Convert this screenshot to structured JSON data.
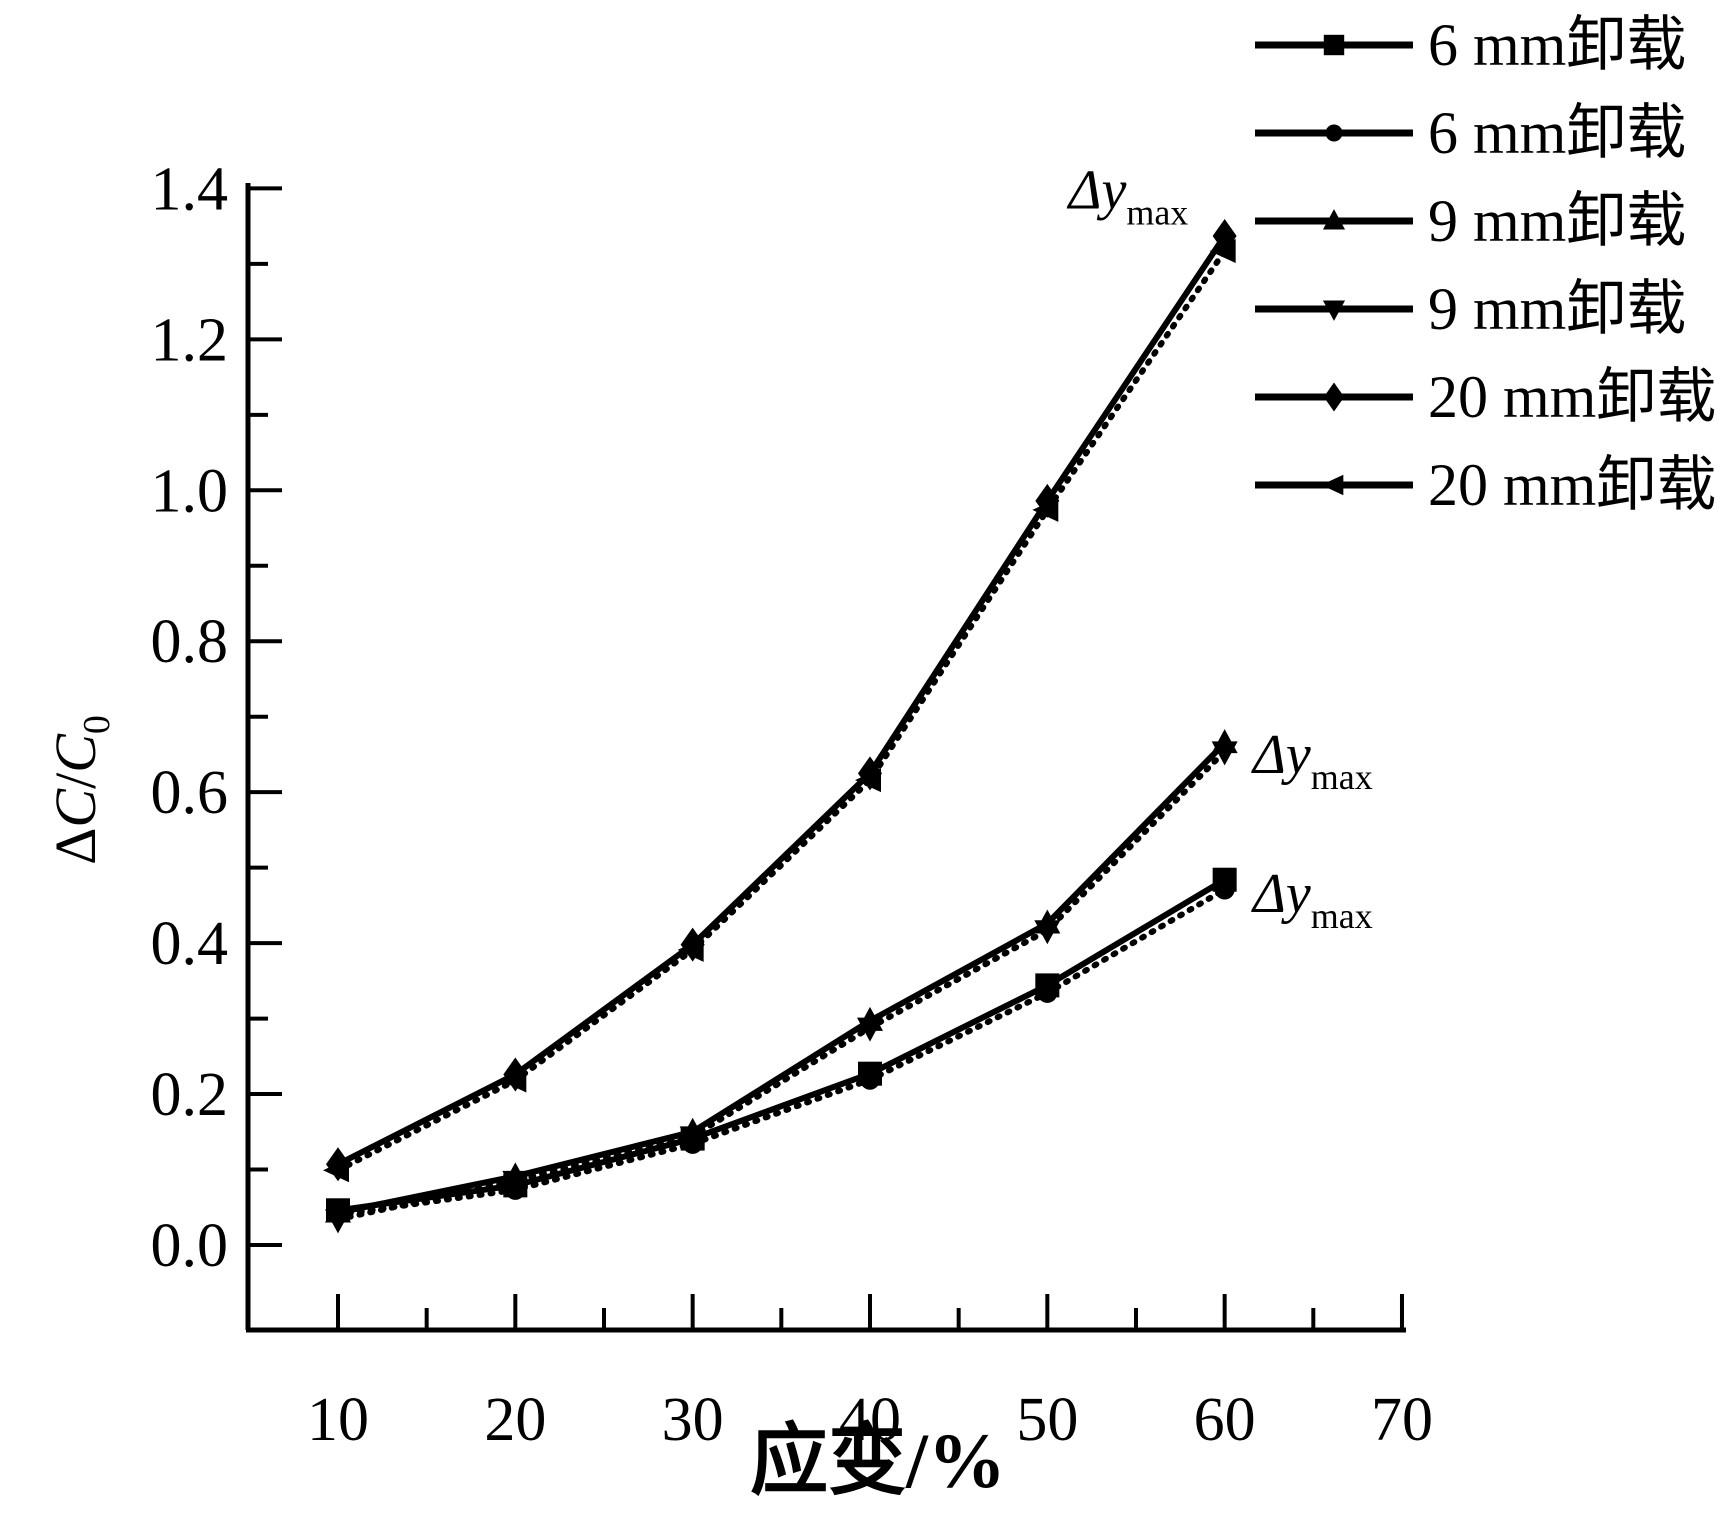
{
  "colors": {
    "ink": "#000000",
    "background": "#ffffff"
  },
  "axes": {
    "x_title": "应变/%",
    "y_title_delta": "Δ",
    "y_title_c1": "C",
    "y_title_slash": "/",
    "y_title_c2": "C",
    "y_title_sub": "0"
  },
  "chart_data": {
    "type": "line",
    "title": "",
    "xlabel": "应变/%",
    "ylabel": "ΔC/C0",
    "xlim": [
      5,
      70
    ],
    "ylim": [
      -0.11,
      1.41
    ],
    "grid": false,
    "legend_position": "top-right",
    "x_ticks": [
      10,
      20,
      30,
      40,
      50,
      60,
      70
    ],
    "x_minor_ticks": [
      15,
      25,
      35,
      45,
      55,
      65
    ],
    "y_ticks": [
      "0.0",
      "0.2",
      "0.4",
      "0.6",
      "0.8",
      "1.0",
      "1.2",
      "1.4"
    ],
    "y_minor_ticks": [
      0.1,
      0.3,
      0.5,
      0.7,
      0.9,
      1.1,
      1.3
    ],
    "x": [
      10,
      20,
      30,
      40,
      50,
      60
    ],
    "series": [
      {
        "name": "6 mm卸载",
        "marker": "square",
        "line": "solid",
        "values": [
          0.046,
          0.079,
          0.141,
          0.227,
          0.344,
          0.484
        ]
      },
      {
        "name": "6 mm卸载",
        "marker": "circle",
        "line": "dotted",
        "values": [
          0.04,
          0.073,
          0.134,
          0.219,
          0.334,
          0.471
        ]
      },
      {
        "name": "9 mm卸载",
        "marker": "triangle-up",
        "line": "solid",
        "values": [
          0.043,
          0.091,
          0.15,
          0.297,
          0.426,
          0.665
        ]
      },
      {
        "name": "9 mm卸载",
        "marker": "triangle-down",
        "line": "dotted",
        "values": [
          0.034,
          0.085,
          0.144,
          0.288,
          0.417,
          0.654
        ]
      },
      {
        "name": "20 mm卸载",
        "marker": "diamond",
        "line": "solid",
        "values": [
          0.107,
          0.226,
          0.398,
          0.625,
          0.986,
          1.337
        ]
      },
      {
        "name": "20 mm卸载",
        "marker": "triangle-left",
        "line": "dotted",
        "values": [
          0.099,
          0.218,
          0.391,
          0.616,
          0.974,
          1.317
        ]
      }
    ],
    "annotations": [
      {
        "text": "Δy",
        "sub": "max",
        "x": 51.2,
        "y": 1.4
      },
      {
        "text": "Δy",
        "sub": "max",
        "x": 61.6,
        "y": 0.652
      },
      {
        "text": "Δy",
        "sub": "max",
        "x": 61.6,
        "y": 0.468
      }
    ]
  },
  "legend": {
    "items": [
      {
        "label": "6 mm卸载",
        "marker": "square"
      },
      {
        "label": "6 mm卸载",
        "marker": "circle"
      },
      {
        "label": "9 mm卸载",
        "marker": "triangle-up"
      },
      {
        "label": "9 mm卸载",
        "marker": "triangle-down"
      },
      {
        "label": "20 mm卸载",
        "marker": "diamond"
      },
      {
        "label": "20 mm卸载",
        "marker": "triangle-left"
      }
    ]
  }
}
